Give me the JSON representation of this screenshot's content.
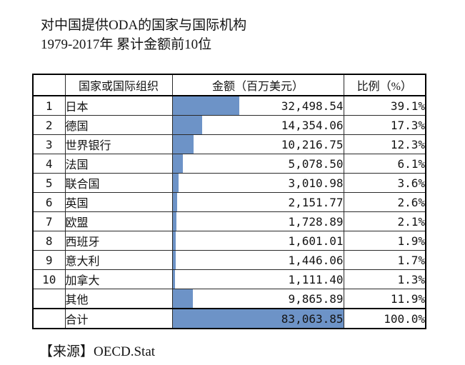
{
  "title": {
    "line1": "对中国提供ODA的国家与国际机构",
    "line2": "1979-2017年  累计金额前10位"
  },
  "table": {
    "headers": {
      "rank": "",
      "name": "国家或国际组织",
      "amount": "金额（百万美元）",
      "percent": "比例（%）"
    },
    "rows": [
      {
        "rank": "1",
        "name": "日本",
        "amount": "32,498.54",
        "percent": "39.1%",
        "bar_pct": 39.1
      },
      {
        "rank": "2",
        "name": "德国",
        "amount": "14,354.06",
        "percent": "17.3%",
        "bar_pct": 17.3
      },
      {
        "rank": "3",
        "name": "世界银行",
        "amount": "10,216.75",
        "percent": "12.3%",
        "bar_pct": 12.3
      },
      {
        "rank": "4",
        "name": "法国",
        "amount": "5,078.50",
        "percent": "6.1%",
        "bar_pct": 6.1
      },
      {
        "rank": "5",
        "name": "联合国",
        "amount": "3,010.98",
        "percent": "3.6%",
        "bar_pct": 3.6
      },
      {
        "rank": "6",
        "name": "英国",
        "amount": "2,151.77",
        "percent": "2.6%",
        "bar_pct": 2.6
      },
      {
        "rank": "7",
        "name": "欧盟",
        "amount": "1,728.89",
        "percent": "2.1%",
        "bar_pct": 2.1
      },
      {
        "rank": "8",
        "name": "西班牙",
        "amount": "1,601.01",
        "percent": "1.9%",
        "bar_pct": 1.9
      },
      {
        "rank": "9",
        "name": "意大利",
        "amount": "1,446.06",
        "percent": "1.7%",
        "bar_pct": 1.7
      },
      {
        "rank": "10",
        "name": "加拿大",
        "amount": "1,111.40",
        "percent": "1.3%",
        "bar_pct": 1.3
      },
      {
        "rank": "",
        "name": "其他",
        "amount": "9,865.89",
        "percent": "11.9%",
        "bar_pct": 11.9
      }
    ],
    "total_row": {
      "rank": "",
      "name": "合计",
      "amount": "83,063.85",
      "percent": "100.0%",
      "bar_pct": 100
    }
  },
  "source": "【来源】OECD.Stat",
  "colors": {
    "bar_fill": "#6d93c7",
    "border": "#000000",
    "text": "#141414",
    "background": "#ffffff"
  },
  "chart_data": {
    "type": "bar",
    "title": "对中国提供ODA的国家与国际机构",
    "subtitle": "1979-2017年 累计金额前10位",
    "categories": [
      "日本",
      "德国",
      "世界银行",
      "法国",
      "联合国",
      "英国",
      "欧盟",
      "西班牙",
      "意大利",
      "加拿大",
      "其他",
      "合计"
    ],
    "series": [
      {
        "name": "金额（百万美元）",
        "values": [
          32498.54,
          14354.06,
          10216.75,
          5078.5,
          3010.98,
          2151.77,
          1728.89,
          1601.01,
          1446.06,
          1111.4,
          9865.89,
          83063.85
        ]
      },
      {
        "name": "比例（%）",
        "values": [
          39.1,
          17.3,
          12.3,
          6.1,
          3.6,
          2.6,
          2.1,
          1.9,
          1.7,
          1.3,
          11.9,
          100.0
        ]
      }
    ],
    "xlabel": "国家或国际组织",
    "ylabel": "金额（百万美元）",
    "bar_scale": "bar width proportional to percent of total (合计 = 100%)",
    "legend": false,
    "grid": false,
    "source": "OECD.Stat"
  }
}
